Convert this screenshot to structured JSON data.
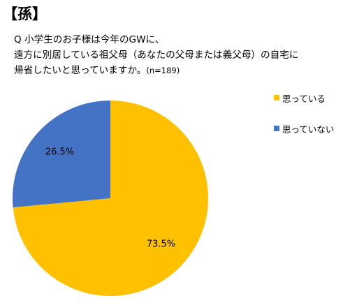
{
  "heading": "【孫】",
  "question": {
    "line1": "Q 小学生のお子様は今年のGWに、",
    "line2": "遠方に別居している祖父母（あなたの父母または義父母）の自宅に",
    "line3": "帰省したいと思っていますか。",
    "n_note": "(n=189)"
  },
  "chart_data": {
    "type": "pie",
    "categories": [
      "思っている",
      "思っていない"
    ],
    "values": [
      73.5,
      26.5
    ],
    "value_labels": [
      "73.5%",
      "26.5%"
    ],
    "colors": [
      "#FFC000",
      "#4472C4"
    ],
    "start": "12 o'clock, clockwise",
    "legend_position": "right"
  }
}
